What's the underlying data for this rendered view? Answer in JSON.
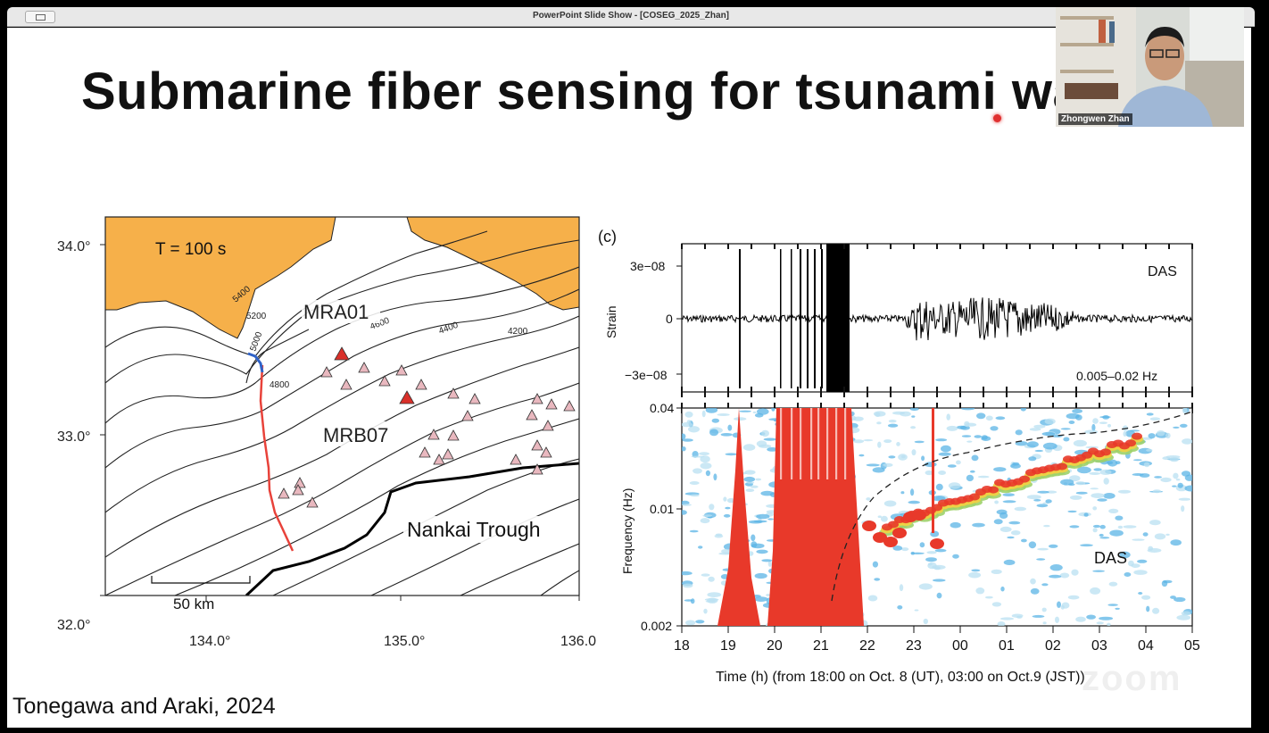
{
  "window": {
    "title": "PowerPoint Slide Show - [COSEG_2025_Zhan]"
  },
  "slide": {
    "title": "Submarine fiber sensing for tsunami wa",
    "citation": "Tonegawa and Araki, 2024"
  },
  "map": {
    "period_label": "T = 100 s",
    "stations": [
      "MRA01",
      "MRB07"
    ],
    "trough_label": "Nankai Trough",
    "scale_label": "50 km",
    "lat_ticks": [
      "34.0°",
      "33.0°",
      "32.0°"
    ],
    "lon_ticks": [
      "134.0°",
      "135.0°",
      "136.0"
    ],
    "contour_labels": [
      "5400",
      "5200",
      "5000",
      "4800",
      "4600",
      "4400",
      "4200"
    ],
    "colors": {
      "land": "#f6b04a",
      "cable_red": "#e8423a",
      "cable_blue": "#2f62c8",
      "station_fill": "#e9b8bf",
      "station_active": "#d9302a"
    }
  },
  "chart_data": {
    "panel_label": "(c)",
    "top": {
      "type": "line",
      "series_label": "DAS",
      "band_label": "0.005–0.02 Hz",
      "ylabel": "Strain",
      "yticks": [
        "3e−08",
        "0",
        "−3e−08"
      ]
    },
    "bottom": {
      "type": "heatmap",
      "series_label": "DAS",
      "ylabel": "Frequency (Hz)",
      "yticks": [
        "0.04",
        "0.01",
        "0.002"
      ],
      "xticks": [
        "18",
        "19",
        "20",
        "21",
        "22",
        "23",
        "00",
        "01",
        "02",
        "03",
        "04",
        "05"
      ],
      "xlabel": "Time (h) (from 18:00 on Oct. 8 (UT), 03:00 on Oct.9 (JST))"
    }
  },
  "webcam": {
    "participant_name": "Zhongwen Zhan"
  },
  "watermark": {
    "text": "zoom"
  },
  "colors": {
    "accent": "#e03030",
    "titlebar": "#e8e8e8"
  }
}
